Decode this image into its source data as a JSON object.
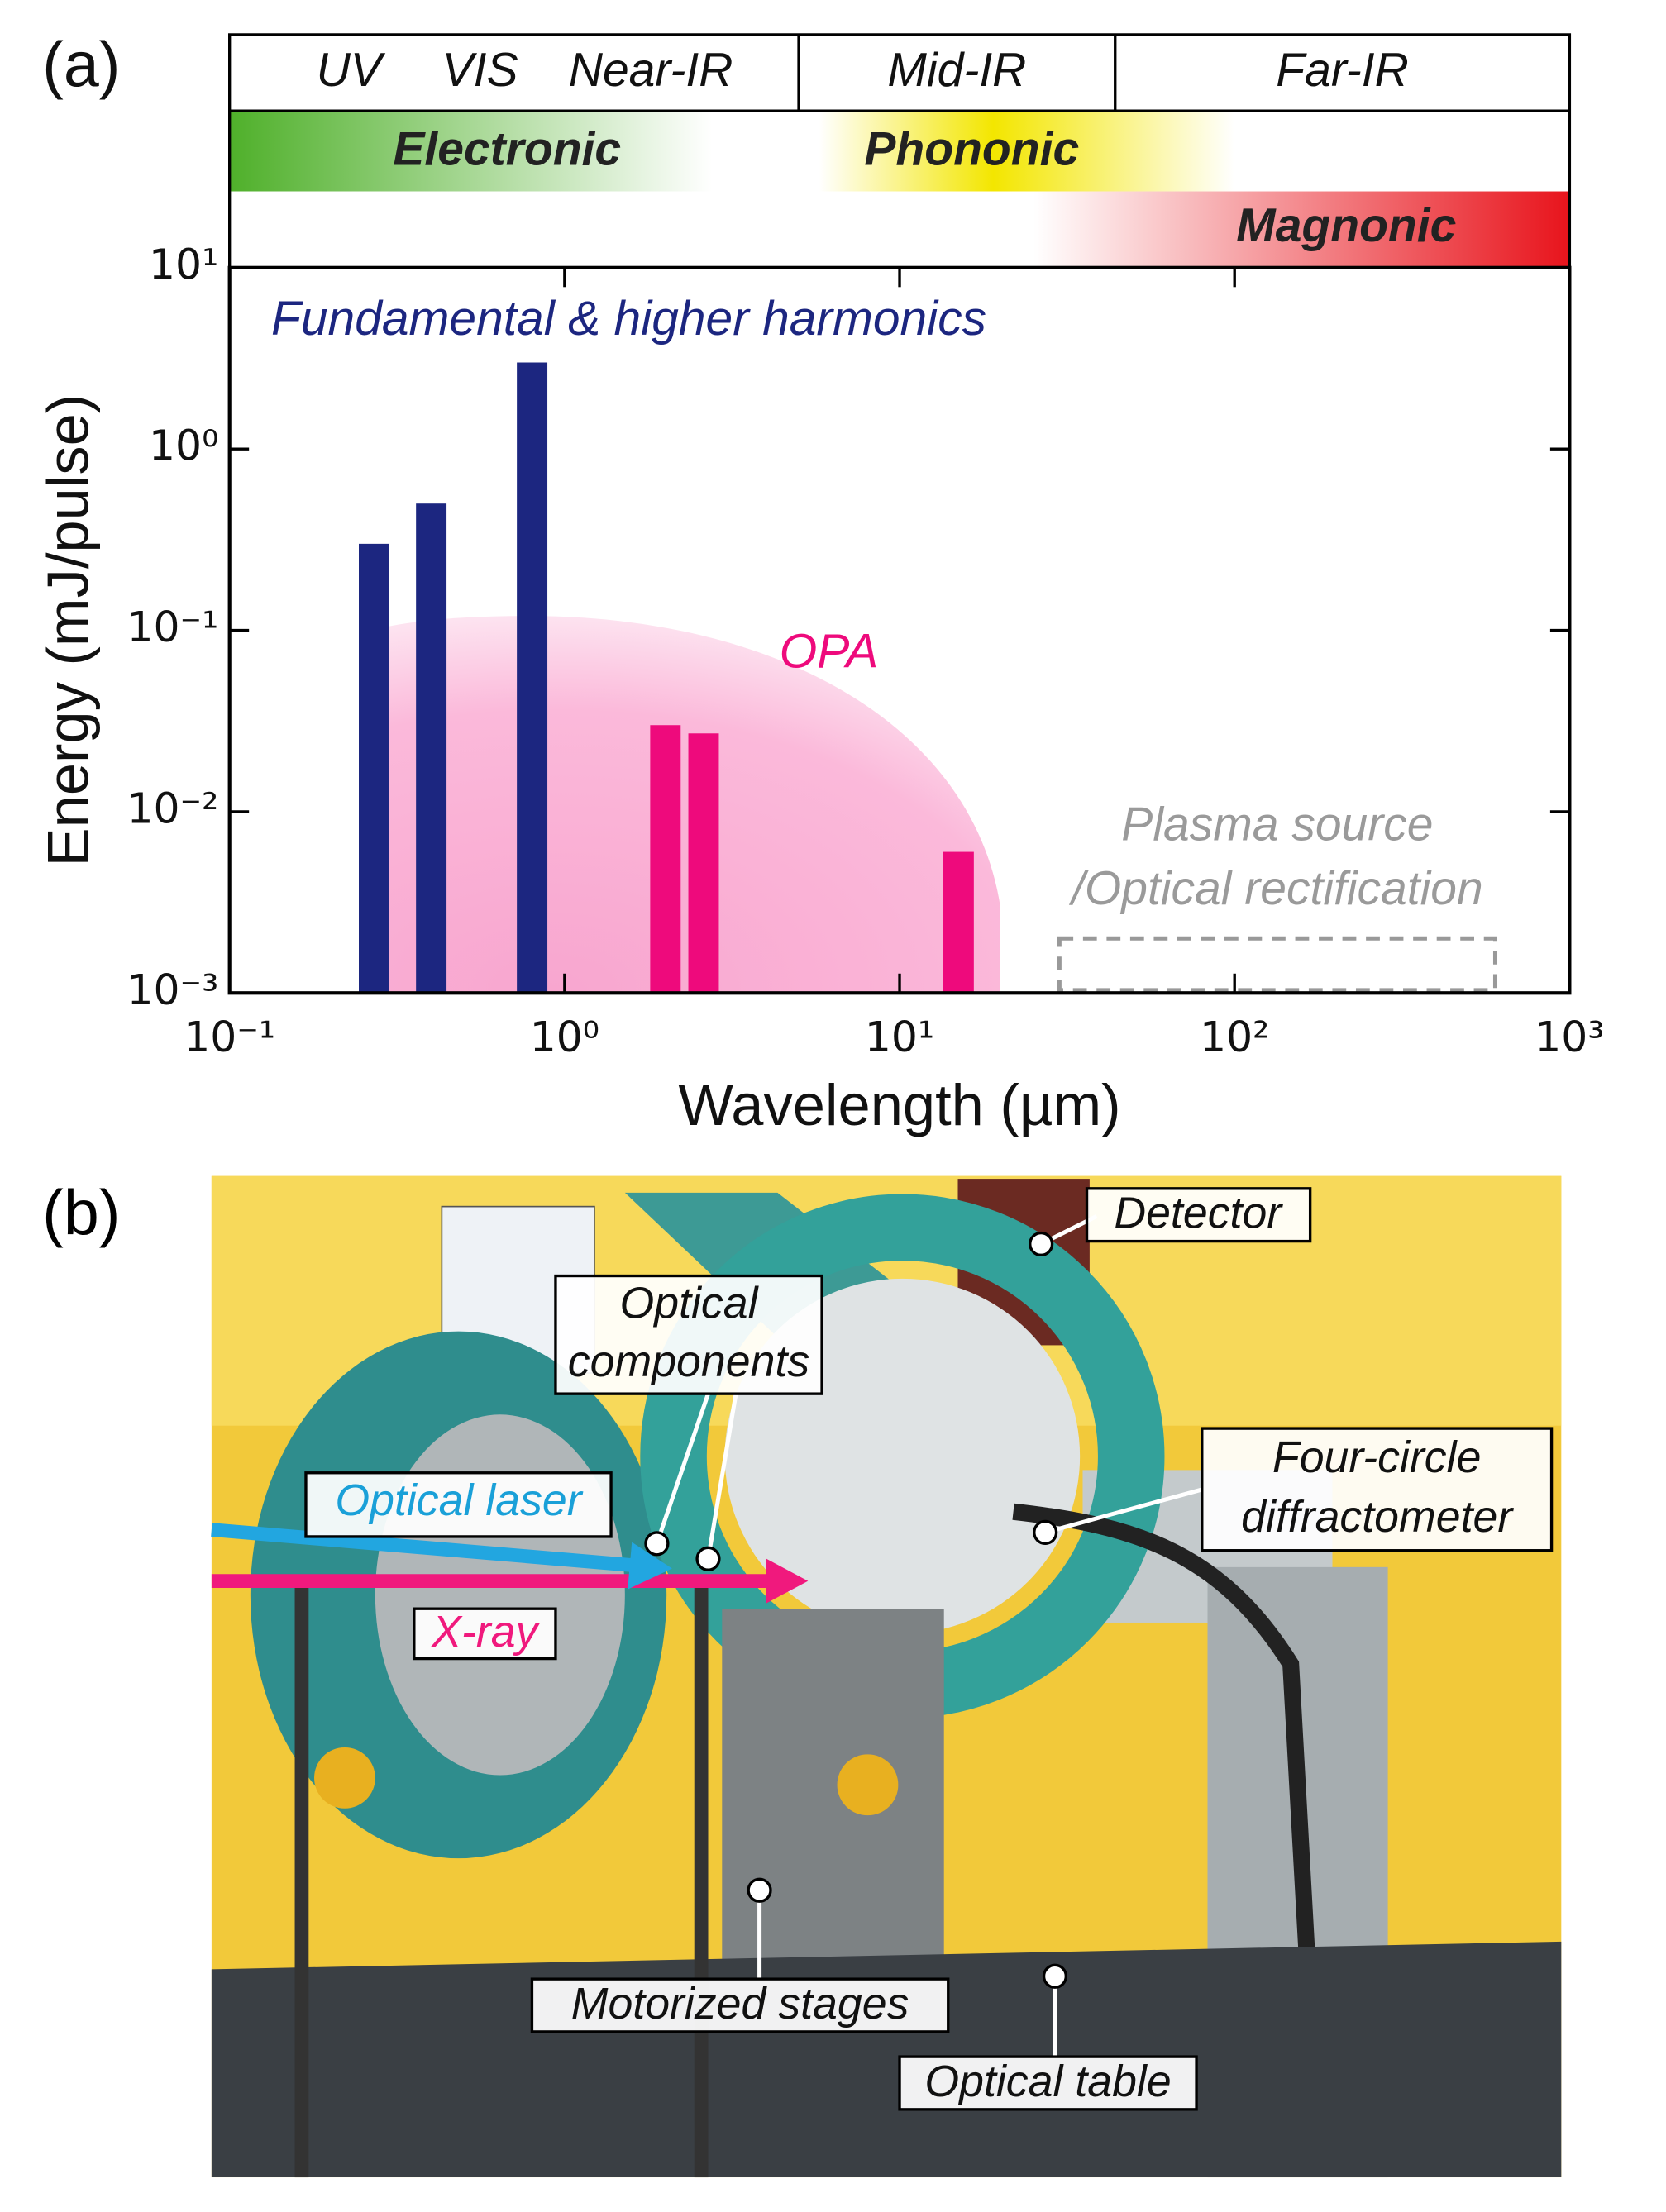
{
  "chart_data": {
    "type": "bar",
    "panel_label": "(a)",
    "xlabel": "Wavelength (µm)",
    "ylabel": "Energy (mJ/pulse)",
    "xscale": "log",
    "yscale": "log",
    "xlim": [
      0.1,
      1000
    ],
    "ylim": [
      0.001,
      10
    ],
    "xticks": [
      {
        "value": 0.1,
        "label": "10⁻¹"
      },
      {
        "value": 1,
        "label": "10⁰"
      },
      {
        "value": 10,
        "label": "10¹"
      },
      {
        "value": 100,
        "label": "10²"
      },
      {
        "value": 1000,
        "label": "10³"
      }
    ],
    "yticks": [
      {
        "value": 0.001,
        "label": "10⁻³"
      },
      {
        "value": 0.01,
        "label": "10⁻²"
      },
      {
        "value": 0.1,
        "label": "10⁻¹"
      },
      {
        "value": 1,
        "label": "10⁰"
      },
      {
        "value": 10,
        "label": "10¹"
      }
    ],
    "series": [
      {
        "name": "Fundamental & higher harmonics",
        "color": "#1c2680",
        "x": [
          0.27,
          0.4,
          0.8
        ],
        "values": [
          0.3,
          0.5,
          3
        ]
      },
      {
        "name": "OPA",
        "color": "#ee0a7c",
        "x": [
          2,
          2.6,
          15
        ],
        "values": [
          0.03,
          0.027,
          0.006
        ]
      }
    ],
    "spectral_regions": [
      {
        "labels": [
          "UV",
          "VIS",
          "Near-IR"
        ],
        "range": [
          0.1,
          5
        ]
      },
      {
        "labels": [
          "Mid-IR"
        ],
        "range": [
          5,
          44
        ]
      },
      {
        "labels": [
          "Far-IR"
        ],
        "range": [
          44,
          1000
        ]
      }
    ],
    "excitations": [
      "Electronic",
      "Phononic",
      "Magnonic"
    ],
    "opa_region": {
      "xlim": [
        0.25,
        20
      ],
      "peak": 0.12
    },
    "annotation": {
      "text": [
        "Plasma source",
        "/Optical rectification"
      ],
      "box_x": [
        30,
        600
      ],
      "box_y": [
        0.001,
        0.002
      ]
    }
  },
  "photo": {
    "panel_label": "(b)",
    "labels": {
      "detector": "Detector",
      "optical_components": [
        "Optical",
        "components"
      ],
      "diffractometer": [
        "Four-circle",
        "diffractometer"
      ],
      "optical_laser": "Optical laser",
      "xray": "X-ray",
      "motorized_stages": "Motorized stages",
      "optical_table": "Optical table"
    }
  }
}
